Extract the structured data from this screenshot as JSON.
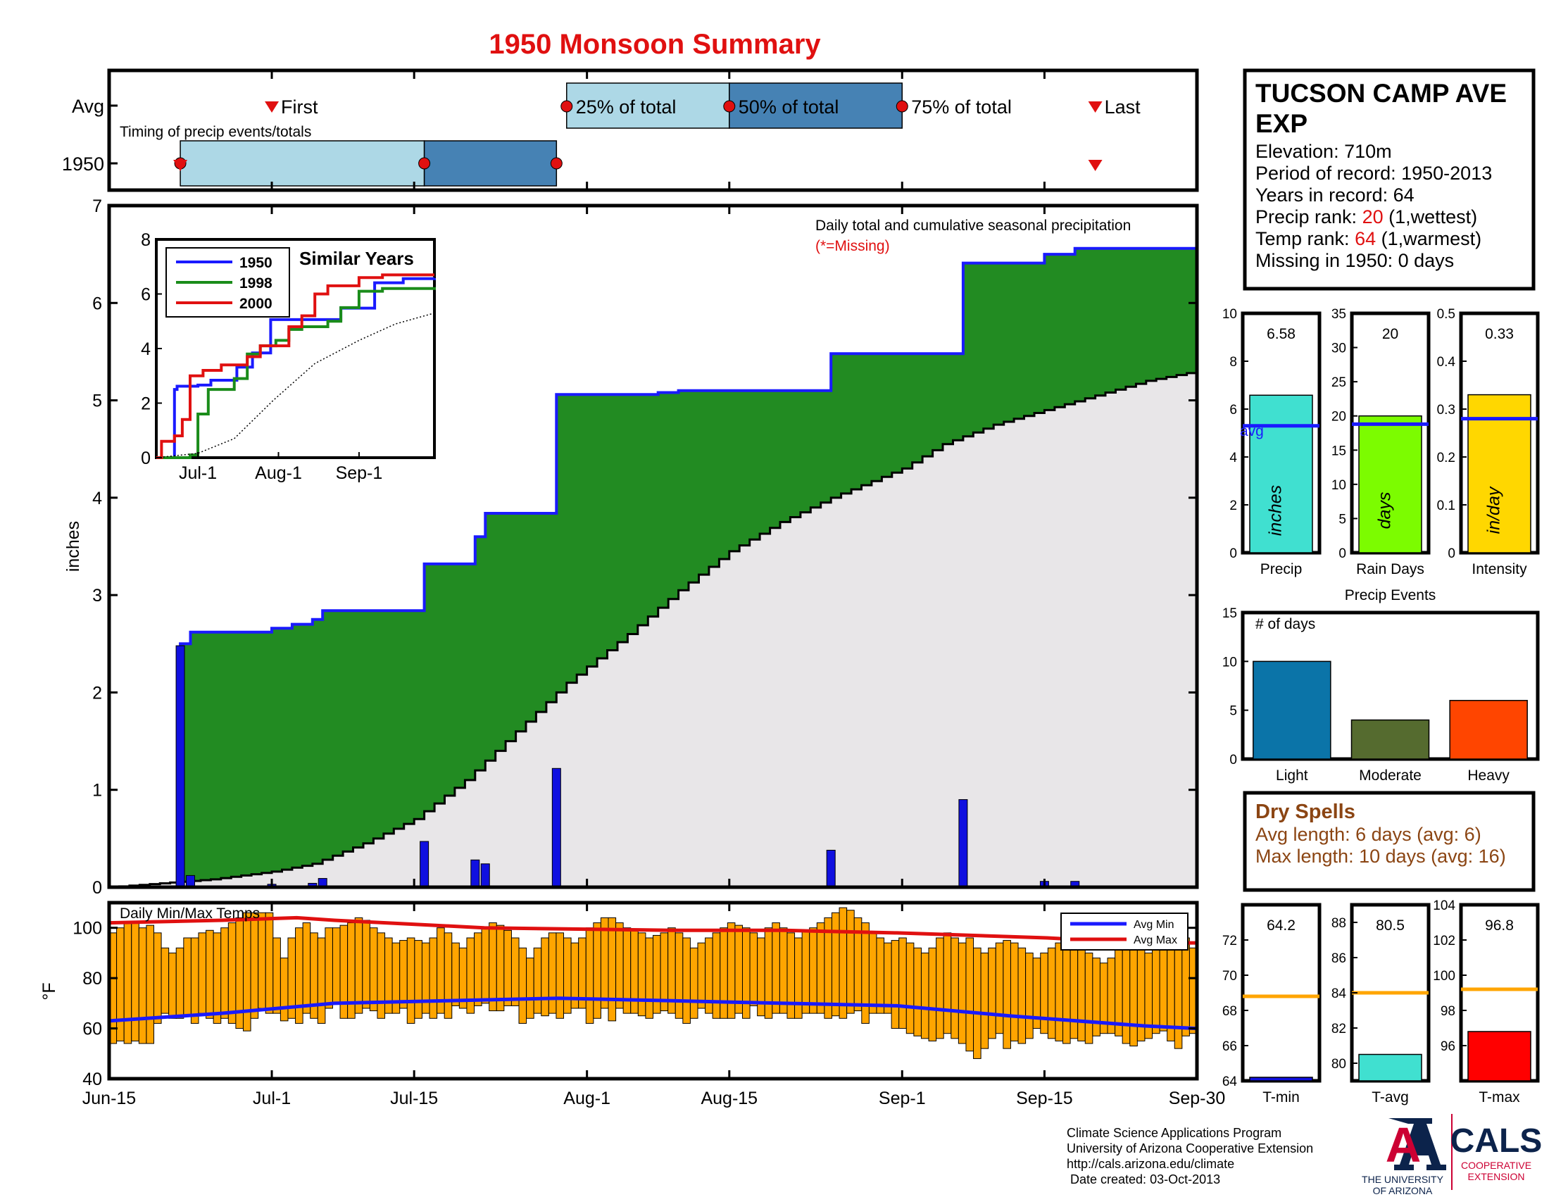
{
  "title": "1950 Monsoon Summary",
  "station": {
    "name_line1": "TUCSON CAMP AVE",
    "name_line2": "EXP",
    "elevation": "Elevation: 710m",
    "period": "Period of record: 1950-2013",
    "years": "Years in record: 64",
    "precip_rank_prefix": "Precip rank: ",
    "precip_rank_value": "20",
    "precip_rank_suffix": " (1,wettest)",
    "temp_rank_prefix": "Temp rank: ",
    "temp_rank_value": "64",
    "temp_rank_suffix": " (1,warmest)",
    "missing": "Missing in 1950: 0 days"
  },
  "timing": {
    "caption": "Timing of precip events/totals",
    "row_labels": [
      "Avg",
      "1950"
    ],
    "avg_markers": [
      {
        "label": "First",
        "date": "Jul-1"
      },
      {
        "label": "25% of total",
        "date": "Jul-30"
      },
      {
        "label": "50% of total",
        "date": "Aug-15"
      },
      {
        "label": "75% of total",
        "date": "Sep-1"
      },
      {
        "label": "Last",
        "date": "Sep-20"
      }
    ],
    "y1950": {
      "first": "Jun-22",
      "p25": "Jun-22",
      "p50": "Jul-16",
      "p75": "Jul-29",
      "last": "Sep-20"
    }
  },
  "chart_data": [
    {
      "type": "area",
      "name": "daily-cumulative-precip",
      "title": "Daily total and cumulative seasonal precipitation",
      "missing_note": "(*=Missing)",
      "ylabel": "inches",
      "ylim": [
        0,
        7
      ],
      "yticks": [
        0,
        1,
        2,
        3,
        4,
        5,
        6,
        7
      ],
      "xticks": [
        "Jun-15",
        "Jul-1",
        "Jul-15",
        "Aug-1",
        "Aug-15",
        "Sep-1",
        "Sep-15",
        "Sep-30"
      ],
      "cumulative_1950_steps": [
        [
          "Jun-15",
          0
        ],
        [
          "Jun-22",
          2.5
        ],
        [
          "Jun-23",
          2.62
        ],
        [
          "Jul-1",
          2.66
        ],
        [
          "Jul-3",
          2.7
        ],
        [
          "Jul-5",
          2.75
        ],
        [
          "Jul-6",
          2.84
        ],
        [
          "Jul-16",
          3.32
        ],
        [
          "Jul-21",
          3.6
        ],
        [
          "Jul-22",
          3.84
        ],
        [
          "Jul-29",
          5.06
        ],
        [
          "Aug-8",
          5.08
        ],
        [
          "Aug-10",
          5.1
        ],
        [
          "Aug-25",
          5.48
        ],
        [
          "Sep-7",
          6.41
        ],
        [
          "Sep-15",
          6.5
        ],
        [
          "Sep-18",
          6.56
        ],
        [
          "Sep-30",
          6.58
        ]
      ],
      "average_cumulative": [
        [
          "Jun-15",
          0
        ],
        [
          "Jun-25",
          0.08
        ],
        [
          "Jul-1",
          0.16
        ],
        [
          "Jul-5",
          0.24
        ],
        [
          "Jul-10",
          0.45
        ],
        [
          "Jul-15",
          0.7
        ],
        [
          "Jul-20",
          1.1
        ],
        [
          "Jul-25",
          1.6
        ],
        [
          "Jul-30",
          2.1
        ],
        [
          "Aug-5",
          2.6
        ],
        [
          "Aug-10",
          3.05
        ],
        [
          "Aug-15",
          3.45
        ],
        [
          "Aug-20",
          3.75
        ],
        [
          "Aug-25",
          4.0
        ],
        [
          "Sep-1",
          4.3
        ],
        [
          "Sep-5",
          4.55
        ],
        [
          "Sep-10",
          4.75
        ],
        [
          "Sep-15",
          4.9
        ],
        [
          "Sep-20",
          5.05
        ],
        [
          "Sep-25",
          5.2
        ],
        [
          "Sep-30",
          5.3
        ]
      ],
      "daily_precip": [
        [
          "Jun-22",
          2.48
        ],
        [
          "Jun-23",
          0.12
        ],
        [
          "Jul-1",
          0.03
        ],
        [
          "Jul-5",
          0.04
        ],
        [
          "Jul-6",
          0.09
        ],
        [
          "Jul-16",
          0.47
        ],
        [
          "Jul-21",
          0.28
        ],
        [
          "Jul-22",
          0.24
        ],
        [
          "Jul-29",
          1.22
        ],
        [
          "Aug-25",
          0.38
        ],
        [
          "Sep-7",
          0.9
        ],
        [
          "Sep-15",
          0.06
        ],
        [
          "Sep-18",
          0.06
        ]
      ],
      "colors": {
        "cumulative_line": "#1a1aff",
        "above_avg_fill": "#228b22",
        "avg_fill": "#e8e6e8",
        "daily_bars": "#1010e0"
      }
    },
    {
      "type": "line",
      "name": "similar-years",
      "title": "Similar Years",
      "ylim": [
        0,
        8
      ],
      "yticks": [
        0,
        2,
        4,
        6,
        8
      ],
      "xticks": [
        "Jul-1",
        "Aug-1",
        "Sep-1"
      ],
      "series": [
        {
          "name": "1950",
          "color": "#1a1aff",
          "steps": [
            [
              "Jun-15",
              0
            ],
            [
              "Jun-22",
              2.5
            ],
            [
              "Jun-23",
              2.62
            ],
            [
              "Jul-1",
              2.66
            ],
            [
              "Jul-6",
              2.84
            ],
            [
              "Jul-16",
              3.32
            ],
            [
              "Jul-22",
              3.84
            ],
            [
              "Jul-29",
              5.06
            ],
            [
              "Aug-25",
              5.48
            ],
            [
              "Sep-7",
              6.41
            ],
            [
              "Sep-18",
              6.56
            ],
            [
              "Sep-30",
              6.58
            ]
          ]
        },
        {
          "name": "1998",
          "color": "#1a8c1a",
          "steps": [
            [
              "Jun-15",
              0
            ],
            [
              "Jun-28",
              0.1
            ],
            [
              "Jul-1",
              1.6
            ],
            [
              "Jul-5",
              2.5
            ],
            [
              "Jul-15",
              2.9
            ],
            [
              "Jul-20",
              3.8
            ],
            [
              "Jul-25",
              4.1
            ],
            [
              "Jul-31",
              4.3
            ],
            [
              "Aug-5",
              4.7
            ],
            [
              "Aug-10",
              4.8
            ],
            [
              "Aug-20",
              5.0
            ],
            [
              "Aug-25",
              5.5
            ],
            [
              "Sep-1",
              6.1
            ],
            [
              "Sep-10",
              6.2
            ],
            [
              "Sep-30",
              6.25
            ]
          ]
        },
        {
          "name": "2000",
          "color": "#e01010",
          "steps": [
            [
              "Jun-15",
              0
            ],
            [
              "Jun-17",
              0.6
            ],
            [
              "Jun-22",
              0.8
            ],
            [
              "Jun-25",
              1.4
            ],
            [
              "Jun-28",
              3.0
            ],
            [
              "Jul-3",
              3.2
            ],
            [
              "Jul-10",
              3.4
            ],
            [
              "Jul-20",
              3.7
            ],
            [
              "Jul-25",
              4.1
            ],
            [
              "Aug-5",
              4.8
            ],
            [
              "Aug-10",
              5.2
            ],
            [
              "Aug-15",
              6.0
            ],
            [
              "Aug-20",
              6.3
            ],
            [
              "Sep-1",
              6.6
            ],
            [
              "Sep-10",
              6.7
            ],
            [
              "Sep-30",
              6.7
            ]
          ]
        },
        {
          "name": "",
          "color": "#000000",
          "dotted": true,
          "steps": [
            [
              "Jun-15",
              0
            ],
            [
              "Jul-1",
              0.16
            ],
            [
              "Jul-15",
              0.7
            ],
            [
              "Jul-30",
              2.1
            ],
            [
              "Aug-15",
              3.45
            ],
            [
              "Sep-1",
              4.3
            ],
            [
              "Sep-15",
              4.9
            ],
            [
              "Sep-30",
              5.3
            ]
          ]
        }
      ]
    },
    {
      "type": "bar",
      "name": "summary-bars",
      "panels": [
        {
          "label": "Precip",
          "unit": "inches",
          "value": 6.58,
          "value_text": "6.58",
          "avg": 5.3,
          "avg_label": "avg",
          "ylim": [
            0,
            10
          ],
          "yticks": [
            0,
            2,
            4,
            6,
            8,
            10
          ],
          "color": "#40e0d0"
        },
        {
          "label": "Rain Days",
          "unit": "days",
          "value": 20,
          "value_text": "20",
          "avg": 18.8,
          "ylim": [
            0,
            35
          ],
          "yticks": [
            0,
            5,
            10,
            15,
            20,
            25,
            30,
            35
          ],
          "color": "#7cfc00"
        },
        {
          "label": "Intensity",
          "unit": "in/day",
          "value": 0.33,
          "value_text": "0.33",
          "avg": 0.28,
          "ylim": [
            0,
            0.5
          ],
          "yticks": [
            0,
            0.1,
            0.2,
            0.3,
            0.4,
            0.5
          ],
          "color": "#ffd700"
        }
      ]
    },
    {
      "type": "bar",
      "name": "precip-events",
      "title": "Precip Events",
      "ylabel": "# of days",
      "categories": [
        "Light",
        "Moderate",
        "Heavy"
      ],
      "values": [
        10,
        4,
        6
      ],
      "ylim": [
        0,
        15
      ],
      "yticks": [
        0,
        5,
        10,
        15
      ],
      "colors": [
        "#0b74a8",
        "#556b2f",
        "#ff4500"
      ]
    },
    {
      "type": "bar",
      "name": "daily-temps",
      "title": "Daily Min/Max Temps",
      "ylabel": "°F",
      "ylim": [
        40,
        110
      ],
      "yticks": [
        40,
        60,
        80,
        100
      ],
      "xticks": [
        "Jun-15",
        "Jul-1",
        "Jul-15",
        "Aug-1",
        "Aug-15",
        "Sep-1",
        "Sep-15",
        "Sep-30"
      ],
      "legend": [
        "Avg Min",
        "Avg Max"
      ],
      "daily_min": [
        54,
        55,
        54,
        55,
        54,
        54,
        62,
        66,
        64,
        64,
        65,
        62,
        66,
        64,
        62,
        64,
        62,
        60,
        59,
        64,
        68,
        66,
        66,
        63,
        64,
        62,
        66,
        64,
        62,
        68,
        70,
        64,
        64,
        66,
        68,
        67,
        64,
        66,
        66,
        68,
        62,
        64,
        66,
        64,
        66,
        64,
        69,
        68,
        66,
        69,
        70,
        67,
        67,
        69,
        69,
        62,
        64,
        66,
        65,
        66,
        64,
        66,
        68,
        68,
        62,
        64,
        68,
        63,
        68,
        66,
        66,
        65,
        64,
        66,
        67,
        66,
        64,
        62,
        64,
        68,
        66,
        64,
        64,
        64,
        66,
        64,
        69,
        65,
        64,
        66,
        66,
        64,
        64,
        66,
        66,
        66,
        64,
        65,
        64,
        66,
        67,
        62,
        66,
        66,
        66,
        60,
        60,
        58,
        57,
        56,
        55,
        56,
        58,
        56,
        54,
        51,
        48,
        52,
        56,
        58,
        52,
        55,
        54,
        56,
        60,
        58,
        56,
        55,
        54,
        56,
        55,
        54,
        57,
        58,
        58,
        57,
        54,
        53,
        55,
        56,
        58,
        59,
        55,
        52,
        57,
        58
      ],
      "daily_max": [
        98,
        100,
        102,
        102,
        100,
        101,
        98,
        92,
        90,
        92,
        96,
        96,
        98,
        99,
        98,
        100,
        102,
        104,
        106,
        106,
        106,
        106,
        96,
        88,
        96,
        100,
        102,
        98,
        96,
        100,
        100,
        101,
        102,
        104,
        103,
        100,
        98,
        96,
        94,
        95,
        96,
        95,
        94,
        96,
        100,
        98,
        94,
        92,
        96,
        98,
        100,
        102,
        101,
        99,
        96,
        92,
        88,
        92,
        96,
        98,
        98,
        96,
        94,
        96,
        100,
        102,
        104,
        104,
        102,
        100,
        99,
        98,
        96,
        97,
        98,
        100,
        98,
        96,
        92,
        94,
        96,
        98,
        100,
        102,
        101,
        100,
        98,
        96,
        100,
        102,
        100,
        98,
        96,
        99,
        100,
        102,
        104,
        106,
        108,
        107,
        104,
        102,
        98,
        96,
        94,
        95,
        96,
        94,
        92,
        90,
        92,
        96,
        98,
        96,
        94,
        96,
        92,
        90,
        92,
        94,
        95,
        94,
        92,
        90,
        88,
        90,
        92,
        94,
        95,
        96,
        93,
        90,
        88,
        86,
        88,
        92,
        94,
        94,
        92,
        90,
        92,
        94,
        93,
        94,
        96,
        92
      ],
      "avg_min_line": [
        [
          0,
          63
        ],
        [
          15,
          66
        ],
        [
          30,
          70
        ],
        [
          45,
          71
        ],
        [
          60,
          72
        ],
        [
          75,
          71
        ],
        [
          90,
          70
        ],
        [
          105,
          69
        ],
        [
          120,
          65
        ],
        [
          138,
          61
        ],
        [
          145,
          60
        ]
      ],
      "avg_max_line": [
        [
          0,
          102
        ],
        [
          15,
          103
        ],
        [
          25,
          104
        ],
        [
          30,
          103
        ],
        [
          50,
          100
        ],
        [
          75,
          99
        ],
        [
          90,
          99
        ],
        [
          105,
          98
        ],
        [
          125,
          96
        ],
        [
          138,
          94
        ],
        [
          145,
          94
        ]
      ],
      "colors": {
        "bars": "#ffa500",
        "avg_min": "#1a1aff",
        "avg_max": "#e01010"
      }
    },
    {
      "type": "bar",
      "name": "temp-summary",
      "panels": [
        {
          "label": "T-min",
          "value": 64.2,
          "value_text": "64.2",
          "avg": 68.8,
          "ylim": [
            64,
            74
          ],
          "yticks": [
            64,
            66,
            68,
            70,
            72
          ],
          "color": "#1010e0"
        },
        {
          "label": "T-avg",
          "value": 80.5,
          "value_text": "80.5",
          "avg": 84.0,
          "ylim": [
            79,
            89
          ],
          "yticks": [
            80,
            82,
            84,
            86,
            88
          ],
          "color": "#40e0d0"
        },
        {
          "label": "T-max",
          "value": 96.8,
          "value_text": "96.8",
          "avg": 99.2,
          "ylim": [
            94,
            104
          ],
          "yticks": [
            96,
            98,
            100,
            102,
            104
          ],
          "color": "#ff0000"
        }
      ]
    }
  ],
  "dry_spells": {
    "title": "Dry Spells",
    "avg_length": "Avg length: 6 days (avg: 6)",
    "max_length": "Max length: 10 days (avg: 16)"
  },
  "footer": {
    "line1": "Climate Science Applications Program",
    "line2": "University of Arizona Cooperative Extension",
    "line3": "http://cals.arizona.edu/climate",
    "line4": " Date created: 03-Oct-2013"
  },
  "logos": {
    "ua_letter": "A",
    "ua_line1": "THE UNIVERSITY",
    "ua_line2": "OF ARIZONA",
    "cals": "CALS",
    "cals_line1": "COOPERATIVE",
    "cals_line2": "EXTENSION"
  }
}
